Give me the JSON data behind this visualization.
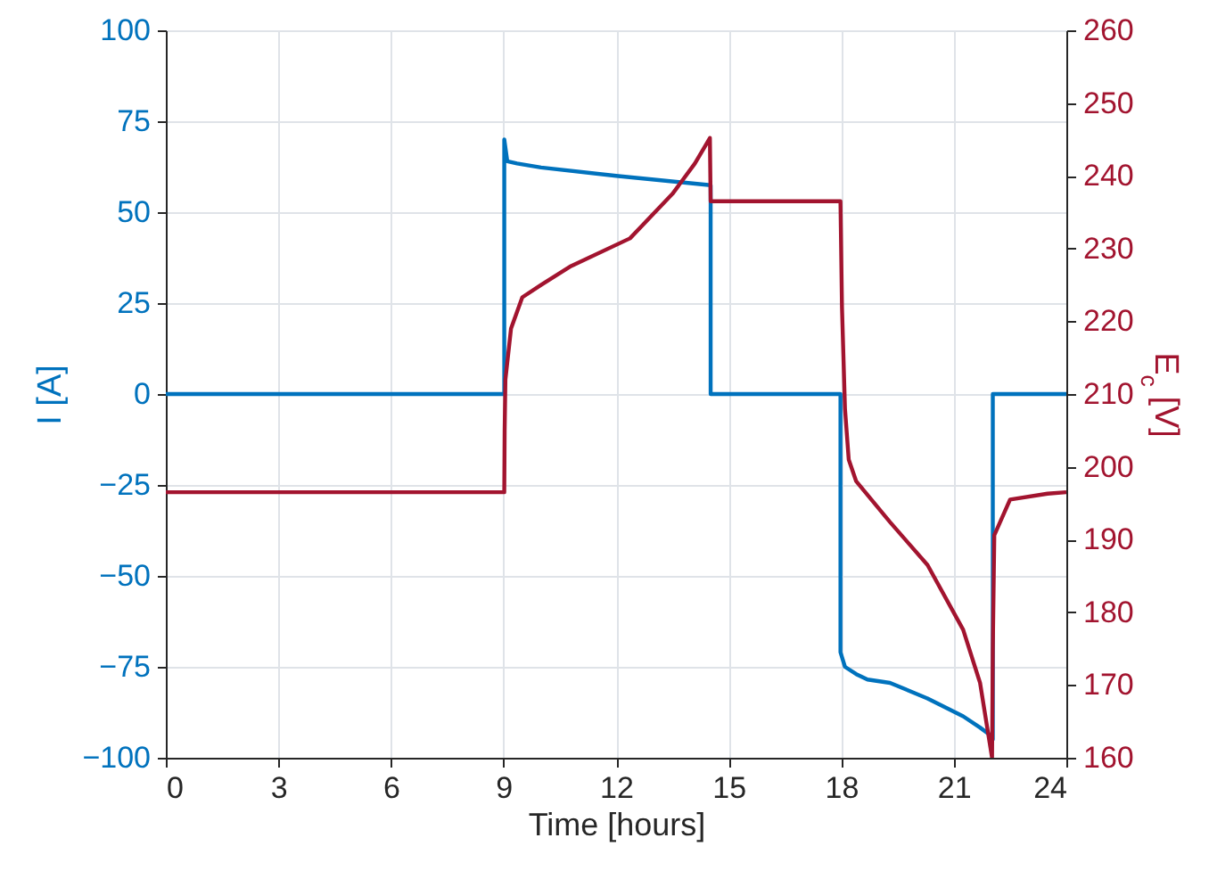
{
  "chart_data": {
    "type": "line",
    "xlabel": "Time [hours]",
    "ylabel": "I [A]",
    "y2label": "E$_{c}$ [V]",
    "xlim": [
      0,
      24
    ],
    "xticks": [
      0,
      3,
      6,
      9,
      12,
      15,
      18,
      21,
      24
    ],
    "ylim": [
      -100,
      100
    ],
    "yticks": [
      -100,
      -75,
      -50,
      -25,
      0,
      25,
      50,
      75,
      100
    ],
    "y2lim": [
      160,
      260
    ],
    "y2ticks": [
      160,
      170,
      180,
      190,
      200,
      210,
      220,
      230,
      240,
      250,
      260
    ],
    "grid": true,
    "line_style": "solid",
    "series": [
      {
        "color": "#0072bd",
        "x": [
          0,
          9.02,
          9.02,
          9.1,
          9.36,
          10,
          12,
          14.52,
          14.52,
          17.98,
          17.98,
          18.1,
          18.4,
          18.7,
          19.3,
          20.3,
          21.25,
          21.7,
          22.0,
          22.04,
          22.04,
          24
        ],
        "values": [
          0,
          0,
          70,
          64,
          63.4,
          62.3,
          60,
          57.4,
          0,
          0,
          -71,
          -75,
          -77,
          -78.5,
          -79.4,
          -83.7,
          -88.6,
          -91.7,
          -94,
          -95,
          0,
          0
        ]
      },
      {
        "color": "#a2142f",
        "axis": "y2",
        "x": [
          0,
          9.02,
          9.03,
          9.05,
          9.2,
          9.5,
          10,
          10.8,
          12.37,
          13.5,
          14.1,
          14.5,
          14.52,
          17.98,
          18.02,
          18.1,
          18.2,
          18.4,
          19.3,
          20.3,
          21.25,
          21.7,
          22.02,
          22.04,
          22.08,
          22.5,
          23.5,
          24
        ],
        "values": [
          196.5,
          196.5,
          205,
          212,
          219,
          223.3,
          225,
          227.6,
          231.4,
          237.5,
          241.7,
          245.2,
          236.5,
          236.5,
          222,
          208,
          201,
          198,
          192.4,
          186.5,
          177.6,
          170.3,
          160,
          175,
          190.6,
          195.5,
          196.3,
          196.5
        ]
      }
    ]
  }
}
